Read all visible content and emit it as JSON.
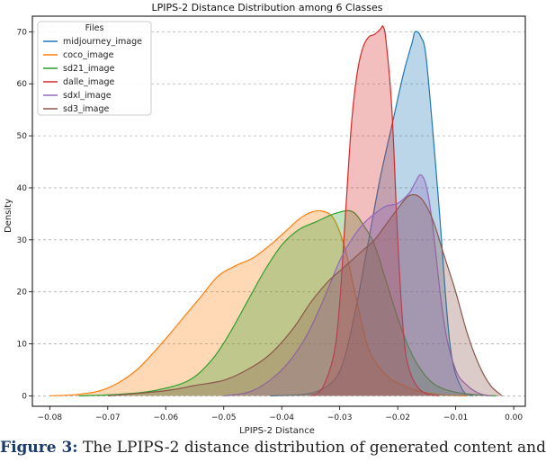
{
  "chart_data": {
    "type": "area",
    "title": "LPIPS-2 Distance Distribution among 6 Classes",
    "xlabel": "LPIPS-2 Distance",
    "ylabel": "Density",
    "xlim": [
      -0.083,
      0.002
    ],
    "ylim": [
      -2,
      73
    ],
    "xticks": [
      -0.08,
      -0.07,
      -0.06,
      -0.05,
      -0.04,
      -0.03,
      -0.02,
      -0.01,
      0.0
    ],
    "xtick_labels": [
      "−0.08",
      "−0.07",
      "−0.06",
      "−0.05",
      "−0.04",
      "−0.03",
      "−0.02",
      "−0.01",
      "0.00"
    ],
    "yticks": [
      0,
      10,
      20,
      30,
      40,
      50,
      60,
      70
    ],
    "ytick_labels": [
      "0",
      "10",
      "20",
      "30",
      "40",
      "50",
      "60",
      "70"
    ],
    "grid": "y-dashed",
    "legend": {
      "title": "Files",
      "placement": "top-left"
    },
    "series": [
      {
        "name": "midjourney_image",
        "color": "#1f77b4",
        "x": [
          -0.042,
          -0.035,
          -0.031,
          -0.029,
          -0.027,
          -0.025,
          -0.023,
          -0.021,
          -0.019,
          -0.0175,
          -0.017,
          -0.016,
          -0.015,
          -0.013,
          -0.011,
          -0.009,
          -0.007
        ],
        "y": [
          0,
          0.5,
          3,
          8,
          18,
          30,
          42,
          52,
          62,
          68,
          70,
          69,
          64,
          38,
          10,
          1.5,
          0
        ]
      },
      {
        "name": "coco_image",
        "color": "#ff7f0e",
        "x": [
          -0.08,
          -0.075,
          -0.07,
          -0.065,
          -0.06,
          -0.057,
          -0.054,
          -0.051,
          -0.048,
          -0.045,
          -0.042,
          -0.039,
          -0.037,
          -0.035,
          -0.033,
          -0.031,
          -0.029,
          -0.027,
          -0.025,
          -0.022,
          -0.019,
          -0.016,
          -0.012,
          -0.008
        ],
        "y": [
          0,
          0.3,
          1.5,
          5,
          11,
          15,
          19,
          23,
          25,
          26.5,
          29,
          32,
          34,
          35.3,
          35.5,
          34,
          28,
          18,
          9,
          4,
          2,
          0.8,
          0.2,
          0
        ]
      },
      {
        "name": "sd21_image",
        "color": "#2ca02c",
        "x": [
          -0.075,
          -0.068,
          -0.062,
          -0.056,
          -0.052,
          -0.049,
          -0.046,
          -0.043,
          -0.04,
          -0.037,
          -0.034,
          -0.031,
          -0.028,
          -0.026,
          -0.024,
          -0.022,
          -0.02,
          -0.018,
          -0.016,
          -0.014,
          -0.012,
          -0.009,
          -0.005,
          -0.003
        ],
        "y": [
          0,
          0.3,
          1,
          3,
          7,
          12,
          18,
          24,
          29,
          32,
          33.5,
          35,
          35.5,
          33,
          29,
          22,
          15,
          9,
          5,
          2.5,
          1.3,
          0.5,
          0.1,
          0
        ]
      },
      {
        "name": "dalle_image",
        "color": "#d62728",
        "x": [
          -0.035,
          -0.033,
          -0.031,
          -0.03,
          -0.029,
          -0.028,
          -0.027,
          -0.026,
          -0.025,
          -0.024,
          -0.023,
          -0.0225,
          -0.022,
          -0.021,
          -0.02,
          -0.019,
          -0.018,
          -0.016,
          -0.013
        ],
        "y": [
          0,
          1.5,
          8,
          18,
          35,
          52,
          62,
          67,
          69,
          69.5,
          70.5,
          71,
          68,
          55,
          30,
          12,
          5,
          1,
          0
        ]
      },
      {
        "name": "sdxl_image",
        "color": "#9467bd",
        "x": [
          -0.05,
          -0.045,
          -0.04,
          -0.036,
          -0.033,
          -0.03,
          -0.028,
          -0.026,
          -0.024,
          -0.022,
          -0.02,
          -0.018,
          -0.017,
          -0.016,
          -0.015,
          -0.014,
          -0.012,
          -0.01,
          -0.008,
          -0.006,
          -0.004
        ],
        "y": [
          0,
          1,
          5,
          11,
          18,
          26,
          30,
          33,
          35,
          36.5,
          37,
          39,
          41,
          42.5,
          40,
          33,
          14,
          5,
          2,
          0.5,
          0
        ]
      },
      {
        "name": "sd3_image",
        "color": "#8c564b",
        "x": [
          -0.07,
          -0.06,
          -0.055,
          -0.05,
          -0.046,
          -0.042,
          -0.038,
          -0.035,
          -0.032,
          -0.03,
          -0.028,
          -0.026,
          -0.024,
          -0.022,
          -0.02,
          -0.018,
          -0.016,
          -0.014,
          -0.012,
          -0.01,
          -0.008,
          -0.006,
          -0.004,
          -0.002
        ],
        "y": [
          0,
          1,
          2,
          3,
          5,
          8,
          13,
          18,
          22,
          24,
          26,
          28,
          30,
          33,
          36,
          38.5,
          38,
          34,
          27,
          20,
          12,
          6,
          2,
          0
        ]
      }
    ]
  },
  "caption": {
    "figure_label": "Figure 3:",
    "text": "The LPIPS-2 distance distribution of generated content and"
  }
}
